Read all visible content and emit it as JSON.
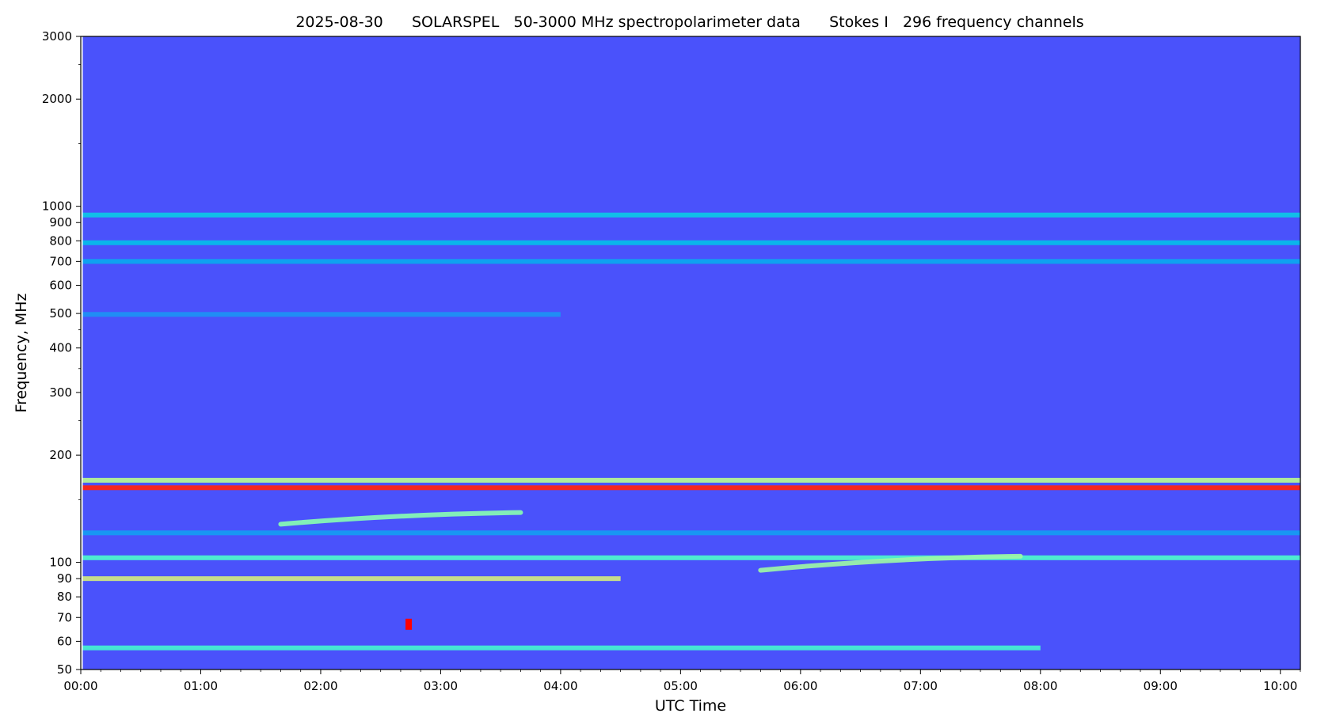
{
  "chart_data": {
    "type": "heatmap",
    "title_parts": {
      "date": "2025-08-30",
      "instrument": "SOLARSPEL",
      "description": "50-3000 MHz spectropolarimeter data",
      "stokes": "Stokes I",
      "channels": "296 frequency channels"
    },
    "xlabel": "UTC Time",
    "ylabel": "Frequency, MHz",
    "y_scale": "log",
    "xlim": [
      "00:00",
      "10:10"
    ],
    "ylim": [
      50,
      3000
    ],
    "x_ticks": [
      "00:00",
      "01:00",
      "02:00",
      "03:00",
      "04:00",
      "05:00",
      "06:00",
      "07:00",
      "08:00",
      "09:00",
      "10:00"
    ],
    "y_ticks": [
      50,
      60,
      70,
      80,
      90,
      100,
      200,
      300,
      400,
      500,
      600,
      700,
      800,
      900,
      1000,
      2000,
      3000
    ],
    "colormap": "rainbow",
    "background_color": "#4a52fb",
    "data_start": "00:01",
    "features": [
      {
        "name": "band",
        "freq_mhz": 945,
        "start": "00:01",
        "end": "10:10",
        "intensity": 0.18
      },
      {
        "name": "band",
        "freq_mhz": 790,
        "start": "00:01",
        "end": "10:10",
        "intensity": 0.16
      },
      {
        "name": "band",
        "freq_mhz": 700,
        "start": "00:01",
        "end": "10:10",
        "intensity": 0.12
      },
      {
        "name": "band",
        "freq_mhz": 497,
        "start": "00:01",
        "end": "04:00",
        "intensity": 0.08
      },
      {
        "name": "band",
        "freq_mhz": 162,
        "start": "00:01",
        "end": "10:10",
        "intensity": 0.95
      },
      {
        "name": "band",
        "freq_mhz": 170,
        "start": "00:01",
        "end": "10:10",
        "intensity": 0.55
      },
      {
        "name": "band",
        "freq_mhz": 121,
        "start": "00:01",
        "end": "10:10",
        "intensity": 0.1
      },
      {
        "name": "band",
        "freq_mhz": 103,
        "start": "00:01",
        "end": "10:10",
        "intensity": 0.32
      },
      {
        "name": "band",
        "freq_mhz": 90,
        "start": "00:01",
        "end": "04:30",
        "intensity": 0.6
      },
      {
        "name": "band",
        "freq_mhz": 57.5,
        "start": "00:01",
        "end": "08:00",
        "intensity": 0.3
      },
      {
        "name": "drifting_emission",
        "start": "01:40",
        "end": "03:40",
        "freq_start_mhz": 128,
        "freq_end_mhz": 138,
        "intensity": 0.45
      },
      {
        "name": "drifting_emission",
        "start": "05:40",
        "end": "07:50",
        "freq_start_mhz": 95,
        "freq_end_mhz": 104,
        "intensity": 0.5
      },
      {
        "name": "burst",
        "time": "02:44",
        "freq_mhz": 67,
        "intensity": 1.0
      }
    ]
  }
}
